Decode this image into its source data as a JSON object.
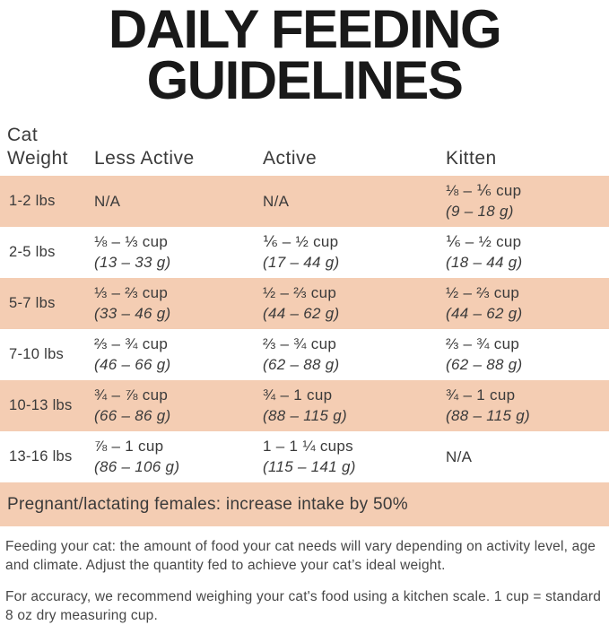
{
  "title": {
    "line1": "DAILY FEEDING",
    "line2": "GUIDELINES"
  },
  "table": {
    "header": {
      "col1_line1": "Cat",
      "col1_line2": "Weight",
      "col2": "Less Active",
      "col3": "Active",
      "col4": "Kitten"
    },
    "rows": [
      {
        "weight": "1-2 lbs",
        "less_active": {
          "amount": "N/A",
          "grams": ""
        },
        "active": {
          "amount": "N/A",
          "grams": ""
        },
        "kitten": {
          "amount": "⅛ – ⅙ cup",
          "grams": "(9 – 18 g)"
        }
      },
      {
        "weight": "2-5 lbs",
        "less_active": {
          "amount": "⅛ – ⅓ cup",
          "grams": "(13 – 33 g)"
        },
        "active": {
          "amount": "⅙ – ½ cup",
          "grams": "(17 – 44 g)"
        },
        "kitten": {
          "amount": "⅙ – ½ cup",
          "grams": "(18 – 44 g)"
        }
      },
      {
        "weight": "5-7 lbs",
        "less_active": {
          "amount": "⅓ – ⅔ cup",
          "grams": "(33 – 46 g)"
        },
        "active": {
          "amount": "½ – ⅔ cup",
          "grams": "(44 – 62 g)"
        },
        "kitten": {
          "amount": "½ – ⅔ cup",
          "grams": "(44 – 62 g)"
        }
      },
      {
        "weight": "7-10 lbs",
        "less_active": {
          "amount": "⅔ – ¾ cup",
          "grams": "(46 – 66 g)"
        },
        "active": {
          "amount": "⅔ – ¾ cup",
          "grams": "(62 – 88 g)"
        },
        "kitten": {
          "amount": "⅔ – ¾ cup",
          "grams": "(62 – 88 g)"
        }
      },
      {
        "weight": "10-13 lbs",
        "less_active": {
          "amount": "¾ – ⅞ cup",
          "grams": "(66 – 86 g)"
        },
        "active": {
          "amount": "¾ – 1 cup",
          "grams": "(88 – 115 g)"
        },
        "kitten": {
          "amount": "¾ – 1 cup",
          "grams": "(88 – 115 g)"
        }
      },
      {
        "weight": "13-16 lbs",
        "less_active": {
          "amount": "⅞ – 1 cup",
          "grams": "(86 – 106 g)"
        },
        "active": {
          "amount": "1 – 1 ¼ cups",
          "grams": "(115 – 141 g)"
        },
        "kitten": {
          "amount": "N/A",
          "grams": ""
        }
      }
    ],
    "note_row": "Pregnant/lactating females: increase intake by 50%"
  },
  "footnotes": {
    "para1": "Feeding your cat: the amount of food your cat needs will vary depending on activity level, age and climate. Adjust the quantity fed to achieve your cat’s ideal weight.",
    "para2": "For accuracy, we recommend weighing your cat's food using a kitchen scale. 1 cup = standard 8 oz dry measuring cup."
  },
  "colors": {
    "row_shade": "#f4cdb3",
    "title_text": "#191919",
    "body_text": "#3a3a3a"
  }
}
